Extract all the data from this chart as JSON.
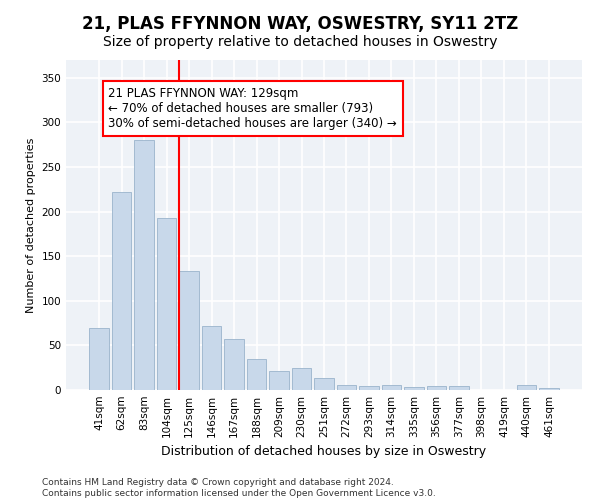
{
  "title": "21, PLAS FFYNNON WAY, OSWESTRY, SY11 2TZ",
  "subtitle": "Size of property relative to detached houses in Oswestry",
  "xlabel": "Distribution of detached houses by size in Oswestry",
  "ylabel": "Number of detached properties",
  "bar_color": "#c8d8ea",
  "bar_edge_color": "#9ab4cc",
  "categories": [
    "41sqm",
    "62sqm",
    "83sqm",
    "104sqm",
    "125sqm",
    "146sqm",
    "167sqm",
    "188sqm",
    "209sqm",
    "230sqm",
    "251sqm",
    "272sqm",
    "293sqm",
    "314sqm",
    "335sqm",
    "356sqm",
    "377sqm",
    "398sqm",
    "419sqm",
    "440sqm",
    "461sqm"
  ],
  "values": [
    70,
    222,
    280,
    193,
    133,
    72,
    57,
    35,
    21,
    25,
    14,
    6,
    5,
    6,
    3,
    4,
    5,
    0,
    0,
    6,
    2
  ],
  "ylim": [
    0,
    370
  ],
  "yticks": [
    0,
    50,
    100,
    150,
    200,
    250,
    300,
    350
  ],
  "property_line_bin": 4,
  "annotation_line1": "21 PLAS FFYNNON WAY: 129sqm",
  "annotation_line2": "← 70% of detached houses are smaller (793)",
  "annotation_line3": "30% of semi-detached houses are larger (340) →",
  "footer_line1": "Contains HM Land Registry data © Crown copyright and database right 2024.",
  "footer_line2": "Contains public sector information licensed under the Open Government Licence v3.0.",
  "background_color": "#ffffff",
  "plot_bg_color": "#eef2f7",
  "grid_color": "#ffffff",
  "title_fontsize": 12,
  "subtitle_fontsize": 10,
  "xlabel_fontsize": 9,
  "ylabel_fontsize": 8,
  "tick_fontsize": 7.5,
  "annotation_fontsize": 8.5,
  "footer_fontsize": 6.5
}
